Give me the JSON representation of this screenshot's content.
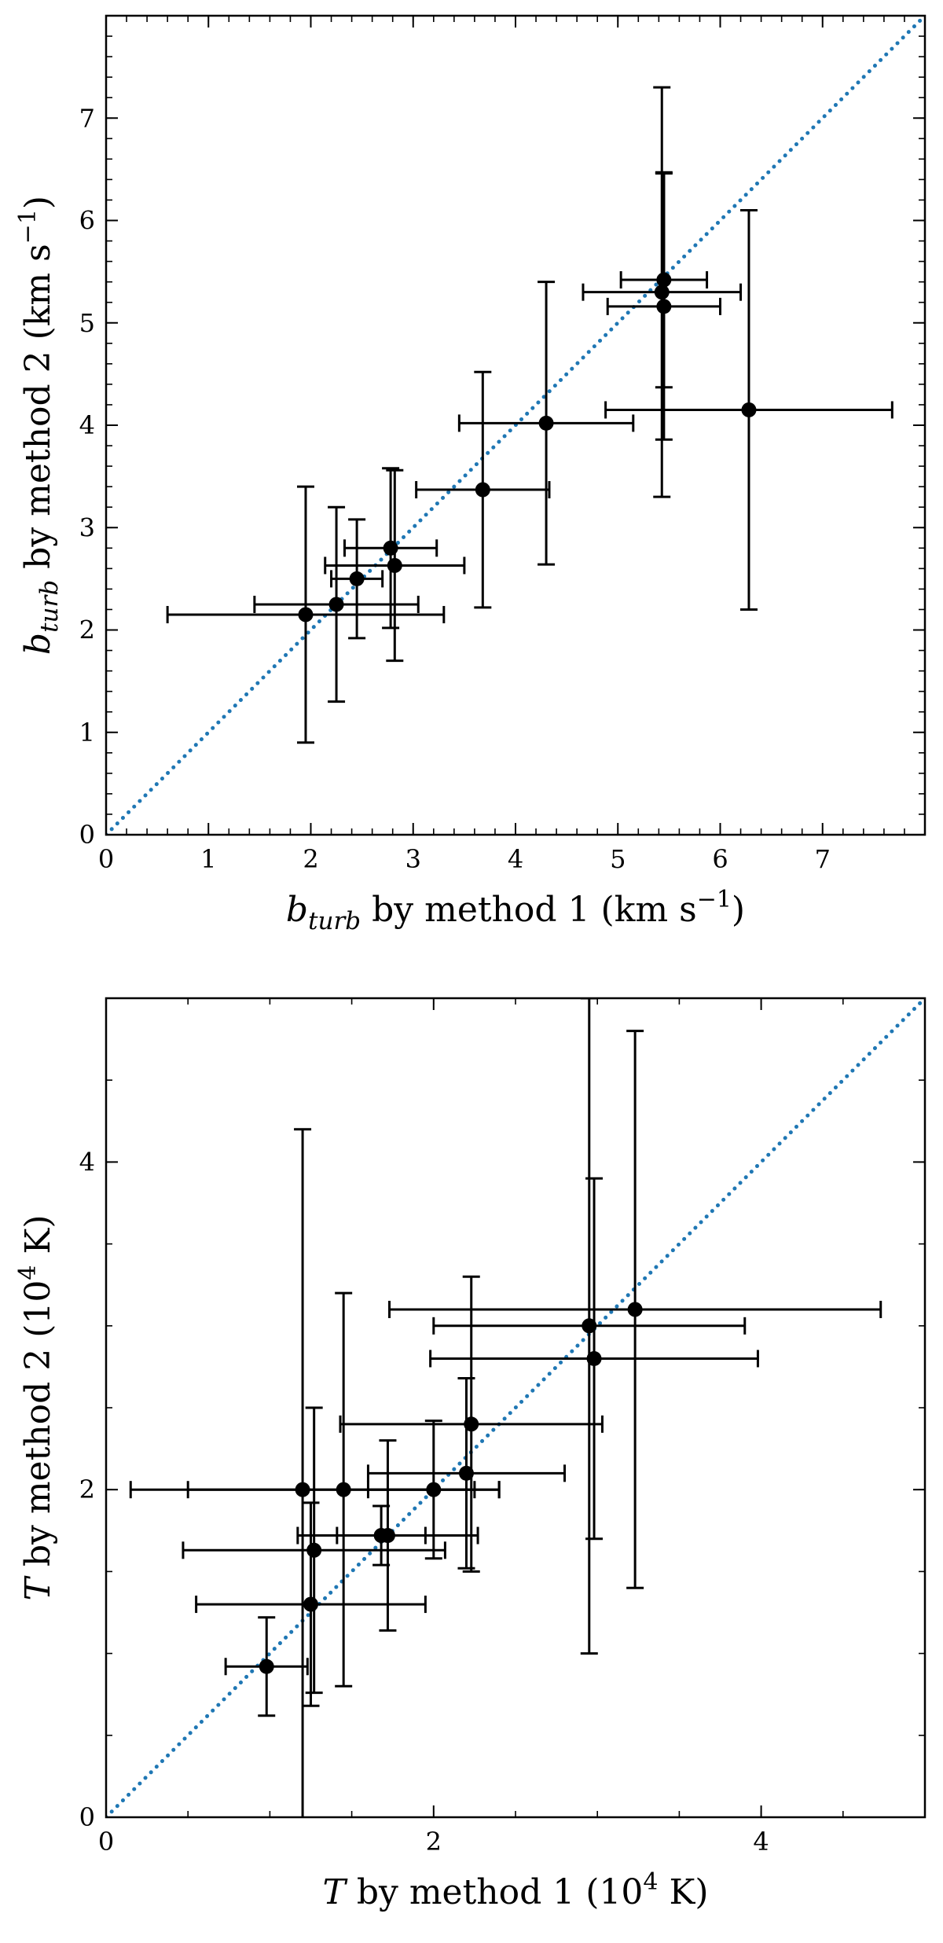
{
  "chart_data": [
    {
      "type": "scatter",
      "title": "",
      "xlabel": {
        "symbol": "b",
        "subscript": "turb",
        "text": "by method 1 (km s",
        "sup": "−1",
        "close": ")"
      },
      "ylabel": {
        "symbol": "b",
        "subscript": "turb",
        "text": "by method 2 (km s",
        "sup": "−1",
        "close": ")"
      },
      "xlim": [
        0,
        8
      ],
      "ylim": [
        0,
        8
      ],
      "xticks": [
        0,
        1,
        2,
        3,
        4,
        5,
        6,
        7
      ],
      "yticks": [
        0,
        1,
        2,
        3,
        4,
        5,
        6,
        7
      ],
      "minor_step": 0.2,
      "grid": false,
      "reference_line": {
        "style": "dotted",
        "color": "#1f77b4",
        "from": [
          0,
          0
        ],
        "to": [
          8,
          8
        ]
      },
      "marker_color": "#000000",
      "points": [
        {
          "x": 1.95,
          "y": 2.15,
          "xerr": [
            1.35,
            1.35
          ],
          "yerr": [
            1.25,
            1.25
          ]
        },
        {
          "x": 2.25,
          "y": 2.25,
          "xerr": [
            0.8,
            0.8
          ],
          "yerr": [
            0.95,
            0.95
          ]
        },
        {
          "x": 2.45,
          "y": 2.5,
          "xerr": [
            0.25,
            0.25
          ],
          "yerr": [
            0.58,
            0.58
          ]
        },
        {
          "x": 2.78,
          "y": 2.8,
          "xerr": [
            0.45,
            0.45
          ],
          "yerr": [
            0.78,
            0.78
          ]
        },
        {
          "x": 2.82,
          "y": 2.63,
          "xerr": [
            0.68,
            0.68
          ],
          "yerr": [
            0.93,
            0.93
          ]
        },
        {
          "x": 3.68,
          "y": 3.37,
          "xerr": [
            0.65,
            0.65
          ],
          "yerr": [
            1.15,
            1.15
          ]
        },
        {
          "x": 4.3,
          "y": 4.02,
          "xerr": [
            0.85,
            0.85
          ],
          "yerr": [
            1.38,
            1.38
          ]
        },
        {
          "x": 5.45,
          "y": 5.42,
          "xerr": [
            0.42,
            0.42
          ],
          "yerr": [
            1.05,
            1.05
          ]
        },
        {
          "x": 5.43,
          "y": 5.3,
          "xerr": [
            0.77,
            0.77
          ],
          "yerr": [
            2.0,
            2.0
          ]
        },
        {
          "x": 5.45,
          "y": 5.16,
          "xerr": [
            0.55,
            0.55
          ],
          "yerr": [
            1.3,
            1.3
          ]
        },
        {
          "x": 6.28,
          "y": 4.15,
          "xerr": [
            1.4,
            1.4
          ],
          "yerr": [
            1.95,
            1.95
          ]
        }
      ]
    },
    {
      "type": "scatter",
      "title": "",
      "xlabel": {
        "symbol": "T",
        "subscript": "",
        "text": "by method 1 (10",
        "sup": "4",
        "close": " K)"
      },
      "ylabel": {
        "symbol": "T",
        "subscript": "",
        "text": "by method 2 (10",
        "sup": "4",
        "close": " K)"
      },
      "xlim": [
        0,
        5
      ],
      "ylim": [
        0,
        5
      ],
      "xticks": [
        0,
        2,
        4
      ],
      "yticks": [
        0,
        2,
        4
      ],
      "minor_step": 0.5,
      "grid": false,
      "reference_line": {
        "style": "dotted",
        "color": "#1f77b4",
        "from": [
          0,
          0
        ],
        "to": [
          5,
          5
        ]
      },
      "marker_color": "#000000",
      "points": [
        {
          "x": 0.98,
          "y": 0.92,
          "xerr": [
            0.25,
            0.25
          ],
          "yerr": [
            0.3,
            0.3
          ]
        },
        {
          "x": 1.2,
          "y": 2.0,
          "xerr": [
            1.05,
            1.05
          ],
          "yerr": [
            2.2,
            2.2
          ]
        },
        {
          "x": 1.25,
          "y": 1.3,
          "xerr": [
            0.7,
            0.7
          ],
          "yerr": [
            0.62,
            0.62
          ]
        },
        {
          "x": 1.27,
          "y": 1.63,
          "xerr": [
            0.8,
            0.8
          ],
          "yerr": [
            0.87,
            0.87
          ]
        },
        {
          "x": 1.45,
          "y": 2.0,
          "xerr": [
            0.95,
            0.95
          ],
          "yerr": [
            1.2,
            1.2
          ]
        },
        {
          "x": 1.68,
          "y": 1.72,
          "xerr": [
            0.27,
            0.27
          ],
          "yerr": [
            0.18,
            0.18
          ]
        },
        {
          "x": 1.72,
          "y": 1.72,
          "xerr": [
            0.55,
            0.55
          ],
          "yerr": [
            0.58,
            0.58
          ]
        },
        {
          "x": 2.0,
          "y": 2.0,
          "xerr": [
            0.4,
            0.4
          ],
          "yerr": [
            0.42,
            0.42
          ]
        },
        {
          "x": 2.2,
          "y": 2.1,
          "xerr": [
            0.6,
            0.6
          ],
          "yerr": [
            0.58,
            0.58
          ]
        },
        {
          "x": 2.23,
          "y": 2.4,
          "xerr": [
            0.8,
            0.8
          ],
          "yerr": [
            0.9,
            0.9
          ]
        },
        {
          "x": 2.95,
          "y": 3.0,
          "xerr": [
            0.95,
            0.95
          ],
          "yerr": [
            2.0,
            2.0
          ]
        },
        {
          "x": 2.98,
          "y": 2.8,
          "xerr": [
            1.0,
            1.0
          ],
          "yerr": [
            1.1,
            1.1
          ]
        },
        {
          "x": 3.23,
          "y": 3.1,
          "xerr": [
            1.5,
            1.5
          ],
          "yerr": [
            1.7,
            1.7
          ]
        }
      ]
    }
  ]
}
